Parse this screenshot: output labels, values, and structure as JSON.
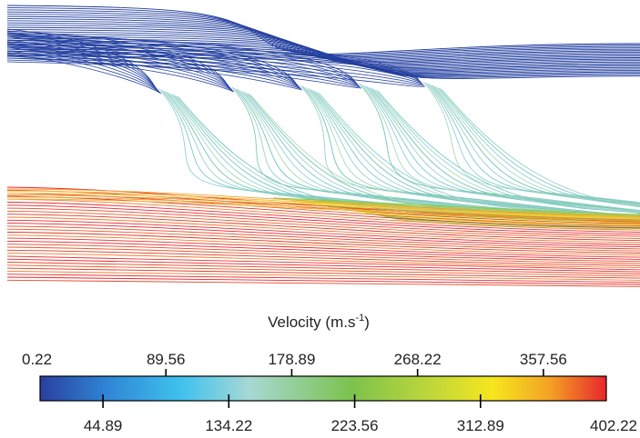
{
  "legend": {
    "title_main": "Velocity (m.s",
    "title_sup": "-1",
    "title_close": ")",
    "min": 0.22,
    "max": 402.22,
    "top_ticks": [
      "0.22",
      "89.56",
      "178.89",
      "268.22",
      "357.56"
    ],
    "bottom_ticks": [
      "44.89",
      "134.22",
      "223.56",
      "312.89",
      "402.22"
    ],
    "top_values": [
      0.22,
      89.56,
      178.89,
      268.22,
      357.56
    ],
    "bottom_values": [
      44.89,
      134.22,
      223.56,
      312.89,
      402.22
    ],
    "colors": [
      "#2b3f9e",
      "#2f86d6",
      "#3fc2ee",
      "#a7d8d4",
      "#7cc24e",
      "#c4d838",
      "#f6e61e",
      "#f4a224",
      "#e8262c"
    ]
  }
}
